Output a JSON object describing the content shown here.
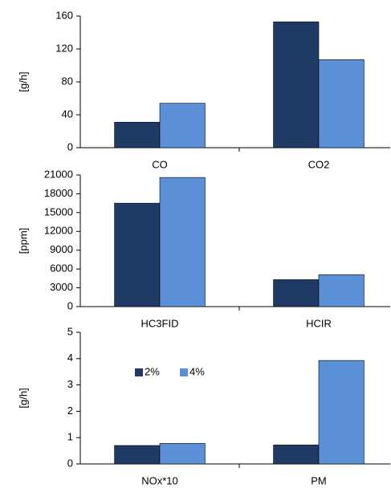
{
  "chart_data": [
    {
      "type": "bar",
      "y_label": "[g/h]",
      "categories": [
        "CO",
        "CO2"
      ],
      "series": [
        {
          "color": "#1f3a63",
          "values": [
            31,
            153
          ]
        },
        {
          "color": "#5b8fd6",
          "values": [
            54,
            107
          ]
        }
      ],
      "ylim": [
        0,
        160
      ],
      "yticks": [
        0,
        40,
        80,
        120,
        160
      ]
    },
    {
      "type": "bar",
      "y_label": "[ppm]",
      "categories": [
        "HC3FID",
        "HCIR"
      ],
      "series": [
        {
          "color": "#1f3a63",
          "values": [
            16500,
            4300
          ]
        },
        {
          "color": "#5b8fd6",
          "values": [
            20600,
            5100
          ]
        }
      ],
      "ylim": [
        0,
        21000
      ],
      "yticks": [
        0,
        3000,
        6000,
        9000,
        12000,
        15000,
        18000,
        21000
      ]
    },
    {
      "type": "bar",
      "y_label": "[g/h]",
      "categories": [
        "NOx*10",
        "PM"
      ],
      "series": [
        {
          "name": "2%",
          "color": "#1f3a63",
          "values": [
            0.7,
            0.72
          ]
        },
        {
          "name": "4%",
          "color": "#5b8fd6",
          "values": [
            0.78,
            3.93
          ]
        }
      ],
      "ylim": [
        0,
        5
      ],
      "yticks": [
        0,
        1,
        2,
        3,
        4,
        5
      ]
    }
  ]
}
